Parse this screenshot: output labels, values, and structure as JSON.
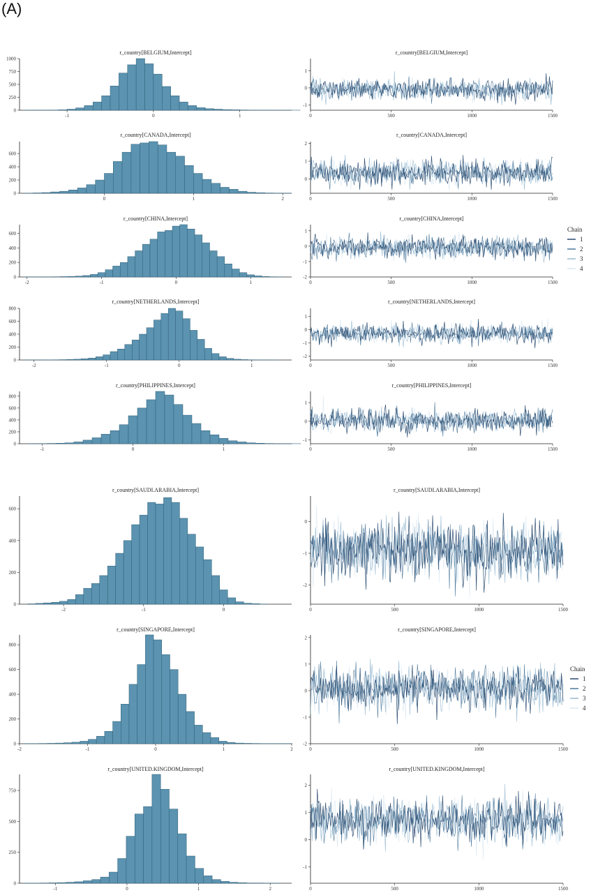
{
  "panel_label": "(A)",
  "legend": {
    "title": "Chain",
    "entries": [
      "1",
      "2",
      "3",
      "4"
    ],
    "colors": [
      "#1d3f66",
      "#3f6e94",
      "#8fb5cd",
      "#d6e6f1"
    ]
  },
  "colors": {
    "hist_fill": "#5b93b0",
    "hist_edge": "#2f5f78",
    "axis": "#222222"
  },
  "chart_data": [
    {
      "type": "bar",
      "title": "r_country[BELGIUM,Intercept]",
      "bin_start": -1.5,
      "bin_width": 0.1,
      "counts": [
        2,
        3,
        3,
        4,
        8,
        20,
        45,
        90,
        160,
        280,
        470,
        720,
        880,
        1000,
        900,
        700,
        460,
        280,
        160,
        90,
        50,
        30,
        20,
        12,
        8,
        5,
        3,
        2,
        2,
        1,
        1,
        1
      ],
      "xlim": [
        -1.55,
        1.6
      ],
      "ylim": [
        0,
        1000
      ],
      "xticks": [
        -1,
        0,
        1
      ],
      "xticklabels": [
        "-1",
        "0",
        "1"
      ],
      "yticks": [
        0,
        250,
        500,
        750,
        1000
      ],
      "yticklabels": [
        "0",
        "250",
        "500",
        "750",
        "1000"
      ]
    },
    {
      "type": "line",
      "title": "r_country[BELGIUM,Intercept]",
      "iterations": 1500,
      "center": -0.1,
      "spread": 0.3,
      "min": -1.0,
      "max": 1.5,
      "xlim": [
        0,
        1500
      ],
      "ylim": [
        -1.3,
        1.7
      ],
      "xticks": [
        0,
        500,
        1000,
        1500
      ],
      "xticklabels": [
        "0",
        "500",
        "1000",
        "1500"
      ],
      "yticks": [
        -1,
        0,
        1
      ],
      "yticklabels": [
        "-1",
        "0",
        "1"
      ]
    },
    {
      "type": "bar",
      "title": "r_country[CANADA,Intercept]",
      "bin_start": -0.9,
      "bin_width": 0.1,
      "counts": [
        2,
        5,
        10,
        20,
        30,
        50,
        80,
        130,
        200,
        300,
        480,
        620,
        740,
        760,
        780,
        730,
        620,
        560,
        420,
        300,
        210,
        150,
        90,
        60,
        30,
        15,
        8,
        4,
        2,
        1
      ],
      "xlim": [
        -0.95,
        2.1
      ],
      "ylim": [
        0,
        780
      ],
      "xticks": [
        0,
        1,
        2
      ],
      "xticklabels": [
        "0",
        "1",
        "2"
      ],
      "yticks": [
        0,
        200,
        400,
        600
      ],
      "yticklabels": [
        "0",
        "200",
        "400",
        "600"
      ]
    },
    {
      "type": "line",
      "title": "r_country[CANADA,Intercept]",
      "iterations": 1500,
      "center": 0.35,
      "spread": 0.35,
      "min": -0.6,
      "max": 2.0,
      "xlim": [
        0,
        1500
      ],
      "ylim": [
        -0.8,
        2.1
      ],
      "xticks": [
        0,
        500,
        1000,
        1500
      ],
      "xticklabels": [
        "0",
        "500",
        "1000",
        "1500"
      ],
      "yticks": [
        0,
        1,
        2
      ],
      "yticklabels": [
        "0",
        "1",
        "2"
      ]
    },
    {
      "type": "bar",
      "title": "r_country[CHINA,Intercept]",
      "bin_start": -2.05,
      "bin_width": 0.1,
      "counts": [
        1,
        1,
        2,
        2,
        3,
        5,
        8,
        12,
        20,
        35,
        60,
        100,
        150,
        200,
        280,
        360,
        450,
        520,
        620,
        640,
        700,
        720,
        660,
        580,
        470,
        360,
        280,
        180,
        110,
        60,
        30,
        15,
        6,
        3,
        1
      ],
      "xlim": [
        -2.1,
        1.55
      ],
      "ylim": [
        0,
        720
      ],
      "xticks": [
        -2,
        -1,
        0,
        1
      ],
      "xticklabels": [
        "-2",
        "-1",
        "0",
        "1"
      ],
      "yticks": [
        0,
        200,
        400,
        600
      ],
      "yticklabels": [
        "0",
        "200",
        "400",
        "600"
      ]
    },
    {
      "type": "line",
      "title": "r_country[CHINA,Intercept]",
      "iterations": 1500,
      "center": -0.1,
      "spread": 0.35,
      "min": -1.8,
      "max": 1.4,
      "xlim": [
        0,
        1500
      ],
      "ylim": [
        -2.0,
        1.4
      ],
      "xticks": [
        0,
        500,
        1000,
        1500
      ],
      "xticklabels": [
        "0",
        "500",
        "1000",
        "1500"
      ],
      "yticks": [
        -2,
        -1,
        0,
        1
      ],
      "yticklabels": [
        "-2",
        "-1",
        "0",
        "1"
      ]
    },
    {
      "type": "bar",
      "title": "r_country[NETHERLANDS,Intercept]",
      "bin_start": -2.15,
      "bin_width": 0.1,
      "counts": [
        1,
        1,
        2,
        2,
        3,
        5,
        8,
        12,
        20,
        30,
        50,
        80,
        130,
        170,
        240,
        310,
        400,
        500,
        620,
        720,
        800,
        760,
        640,
        460,
        320,
        180,
        100,
        50,
        25,
        12,
        6,
        3,
        2,
        1,
        1
      ],
      "xlim": [
        -2.2,
        1.55
      ],
      "ylim": [
        0,
        800
      ],
      "xticks": [
        -2,
        -1,
        0,
        1
      ],
      "xticklabels": [
        "-2",
        "-1",
        "0",
        "1"
      ],
      "yticks": [
        0,
        200,
        400,
        600,
        800
      ],
      "yticklabels": [
        "0",
        "200",
        "400",
        "600",
        "800"
      ]
    },
    {
      "type": "line",
      "title": "r_country[NETHERLANDS,Intercept]",
      "iterations": 1500,
      "center": -0.3,
      "spread": 0.35,
      "min": -2.2,
      "max": 1.4,
      "xlim": [
        0,
        1500
      ],
      "ylim": [
        -2.3,
        1.6
      ],
      "xticks": [
        0,
        500,
        1000,
        1500
      ],
      "xticklabels": [
        "0",
        "500",
        "1000",
        "1500"
      ],
      "yticks": [
        -2,
        -1,
        0,
        1
      ],
      "yticklabels": [
        "-2",
        "-1",
        "0",
        "1"
      ]
    },
    {
      "type": "bar",
      "title": "r_country[PHILIPPINES,Intercept]",
      "bin_start": -1.15,
      "bin_width": 0.1,
      "counts": [
        2,
        3,
        5,
        8,
        15,
        30,
        60,
        100,
        160,
        220,
        320,
        470,
        600,
        740,
        880,
        820,
        660,
        480,
        340,
        220,
        150,
        90,
        50,
        30,
        15,
        8,
        4,
        2,
        1,
        1
      ],
      "xlim": [
        -1.25,
        1.75
      ],
      "ylim": [
        0,
        880
      ],
      "xticks": [
        -1,
        0,
        1
      ],
      "xticklabels": [
        "-1",
        "0",
        "1"
      ],
      "yticks": [
        0,
        200,
        400,
        600,
        800
      ],
      "yticklabels": [
        "0",
        "200",
        "400",
        "600",
        "800"
      ]
    },
    {
      "type": "line",
      "title": "r_country[PHILIPPINES,Intercept]",
      "iterations": 1500,
      "center": 0.05,
      "spread": 0.3,
      "min": -1.0,
      "max": 1.5,
      "xlim": [
        0,
        1500
      ],
      "ylim": [
        -1.2,
        1.6
      ],
      "xticks": [
        0,
        500,
        1000,
        1500
      ],
      "xticklabels": [
        "0",
        "500",
        "1000",
        "1500"
      ],
      "yticks": [
        -1,
        0,
        1
      ],
      "yticklabels": [
        "-1",
        "0",
        "1"
      ]
    },
    {
      "type": "bar",
      "title": "r_country[SAUDI.ARABIA,Intercept]",
      "bin_start": -2.45,
      "bin_width": 0.1,
      "counts": [
        2,
        5,
        8,
        12,
        18,
        30,
        60,
        100,
        130,
        180,
        240,
        320,
        400,
        500,
        560,
        640,
        630,
        670,
        640,
        540,
        440,
        360,
        280,
        180,
        90,
        40,
        15,
        6,
        3,
        1
      ],
      "xlim": [
        -2.55,
        0.85
      ],
      "ylim": [
        0,
        680
      ],
      "xticks": [
        -2,
        -1,
        0
      ],
      "xticklabels": [
        "-2",
        "-1",
        "0"
      ],
      "yticks": [
        0,
        200,
        400,
        600
      ],
      "yticklabels": [
        "0",
        "200",
        "400",
        "600"
      ]
    },
    {
      "type": "line",
      "title": "r_country[SAUDI.ARABIA,Intercept]",
      "iterations": 1500,
      "center": -0.9,
      "spread": 0.45,
      "min": -2.4,
      "max": 0.7,
      "xlim": [
        0,
        1500
      ],
      "ylim": [
        -2.6,
        0.8
      ],
      "xticks": [
        0,
        500,
        1000,
        1500
      ],
      "xticklabels": [
        "0",
        "500",
        "1000",
        "1500"
      ],
      "yticks": [
        -2,
        -1,
        0
      ],
      "yticklabels": [
        "-2",
        "-1",
        "0"
      ]
    },
    {
      "type": "bar",
      "title": "r_country[SINGAPORE,Intercept]",
      "bin_start": -1.95,
      "bin_width": 0.12,
      "counts": [
        1,
        1,
        2,
        3,
        5,
        8,
        12,
        20,
        35,
        60,
        100,
        180,
        320,
        480,
        640,
        880,
        840,
        720,
        600,
        400,
        260,
        150,
        90,
        50,
        20,
        10,
        5,
        3,
        2,
        1,
        1,
        1,
        1
      ],
      "xlim": [
        -2.0,
        2.0
      ],
      "ylim": [
        0,
        880
      ],
      "xticks": [
        -2,
        -1,
        0,
        1,
        2
      ],
      "xticklabels": [
        "-2",
        "-1",
        "0",
        "1",
        "2"
      ],
      "yticks": [
        0,
        200,
        400,
        600,
        800
      ],
      "yticklabels": [
        "0",
        "200",
        "400",
        "600",
        "800"
      ]
    },
    {
      "type": "line",
      "title": "r_country[SINGAPORE,Intercept]",
      "iterations": 1500,
      "center": 0.1,
      "spread": 0.4,
      "min": -1.8,
      "max": 1.8,
      "xlim": [
        0,
        1500
      ],
      "ylim": [
        -2.0,
        2.1
      ],
      "xticks": [
        0,
        500,
        1000,
        1500
      ],
      "xticklabels": [
        "0",
        "500",
        "1000",
        "1500"
      ],
      "yticks": [
        -2,
        -1,
        0,
        1,
        2
      ],
      "yticklabels": [
        "-2",
        "-1",
        "0",
        "1",
        "2"
      ]
    },
    {
      "type": "bar",
      "title": "r_country[UNITED.KINGDOM,Intercept]",
      "bin_start": -1.45,
      "bin_width": 0.12,
      "counts": [
        1,
        1,
        2,
        3,
        5,
        8,
        12,
        20,
        30,
        50,
        90,
        200,
        380,
        560,
        620,
        880,
        760,
        600,
        400,
        220,
        120,
        60,
        30,
        15,
        8,
        4,
        2,
        2,
        1,
        1
      ],
      "xlim": [
        -1.5,
        2.3
      ],
      "ylim": [
        0,
        880
      ],
      "xticks": [
        -1,
        0,
        1,
        2
      ],
      "xticklabels": [
        "-1",
        "0",
        "1",
        "2"
      ],
      "yticks": [
        0,
        250,
        500,
        750
      ],
      "yticklabels": [
        "0",
        "250",
        "500",
        "750"
      ]
    },
    {
      "type": "line",
      "title": "r_country[UNITED.KINGDOM,Intercept]",
      "iterations": 1500,
      "center": 0.7,
      "spread": 0.4,
      "min": -1.4,
      "max": 2.3,
      "xlim": [
        0,
        1500
      ],
      "ylim": [
        -1.6,
        2.4
      ],
      "xticks": [
        0,
        500,
        1000,
        1500
      ],
      "xticklabels": [
        "0",
        "500",
        "1000",
        "1500"
      ],
      "yticks": [
        -1,
        0,
        1,
        2
      ],
      "yticklabels": [
        "-1",
        "0",
        "1",
        "2"
      ]
    }
  ]
}
